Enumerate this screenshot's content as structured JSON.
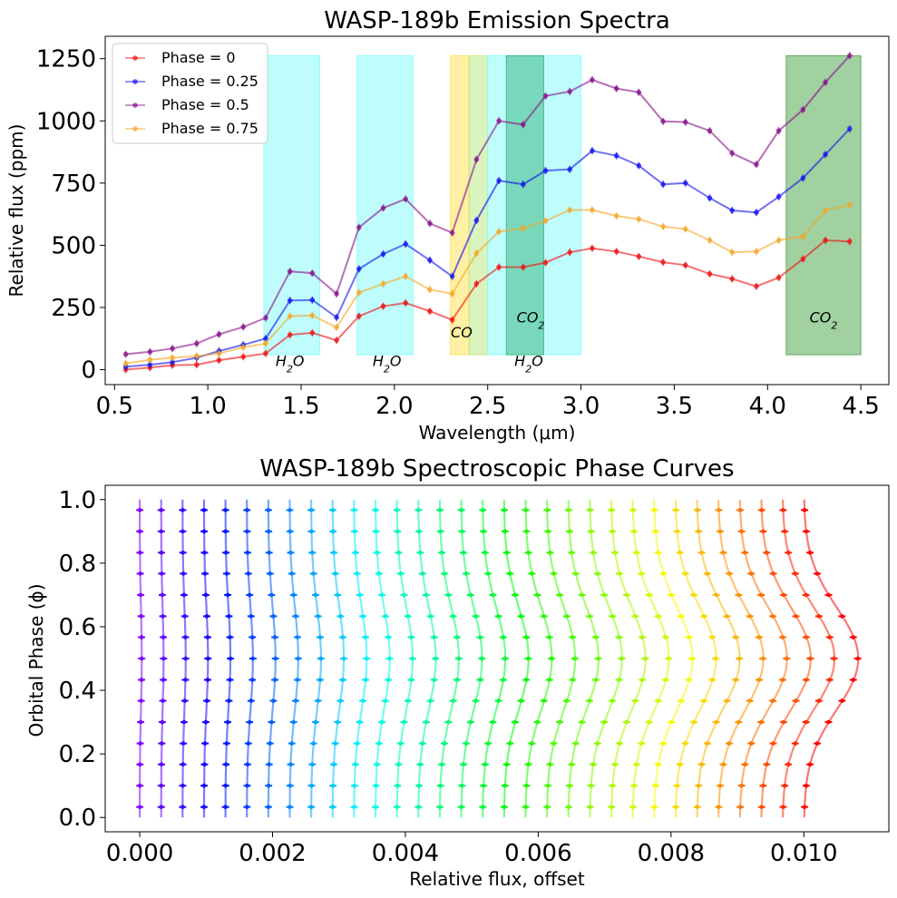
{
  "chart_data": [
    {
      "type": "line",
      "title": "WASP-189b Emission Spectra",
      "xlabel": "Wavelength (μm)",
      "ylabel": "Relative flux (ppm)",
      "xlim": [
        0.45,
        4.65
      ],
      "ylim": [
        -60,
        1340
      ],
      "xticks": [
        0.5,
        1.0,
        1.5,
        2.0,
        2.5,
        3.0,
        3.5,
        4.0,
        4.5
      ],
      "xtick_labels": [
        "0.5",
        "1.0",
        "1.5",
        "2.0",
        "2.5",
        "3.0",
        "3.5",
        "4.0",
        "4.5"
      ],
      "yticks": [
        0,
        250,
        500,
        750,
        1000,
        1250
      ],
      "ytick_labels": [
        "0",
        "250",
        "500",
        "750",
        "1000",
        "1250"
      ],
      "legend_position": "top-left",
      "x": [
        0.56,
        0.69,
        0.81,
        0.94,
        1.06,
        1.19,
        1.31,
        1.44,
        1.56,
        1.69,
        1.81,
        1.94,
        2.06,
        2.19,
        2.31,
        2.44,
        2.56,
        2.69,
        2.81,
        2.94,
        3.06,
        3.19,
        3.31,
        3.44,
        3.56,
        3.69,
        3.81,
        3.94,
        4.06,
        4.19,
        4.31,
        4.44
      ],
      "series": [
        {
          "name": "Phase = 0",
          "color": "#ee1111",
          "values": [
            0,
            8,
            18,
            20,
            38,
            52,
            65,
            140,
            148,
            118,
            215,
            255,
            268,
            235,
            200,
            345,
            412,
            412,
            430,
            472,
            488,
            475,
            455,
            432,
            420,
            385,
            365,
            335,
            370,
            445,
            520,
            515
          ]
        },
        {
          "name": "Phase = 0.25",
          "color": "#1111ee",
          "values": [
            12,
            20,
            30,
            48,
            75,
            100,
            125,
            278,
            280,
            210,
            405,
            465,
            505,
            440,
            375,
            600,
            760,
            745,
            800,
            805,
            880,
            860,
            820,
            745,
            750,
            690,
            640,
            632,
            695,
            770,
            865,
            968
          ]
        },
        {
          "name": "Phase = 0.5",
          "color": "#881188",
          "values": [
            62,
            72,
            85,
            105,
            142,
            172,
            208,
            395,
            388,
            305,
            572,
            650,
            686,
            588,
            550,
            845,
            1000,
            985,
            1100,
            1118,
            1165,
            1130,
            1115,
            998,
            995,
            960,
            870,
            825,
            960,
            1045,
            1155,
            1262
          ]
        },
        {
          "name": "Phase = 0.75",
          "color": "#f5a623",
          "values": [
            25,
            40,
            48,
            55,
            65,
            90,
            105,
            215,
            218,
            170,
            310,
            345,
            375,
            322,
            305,
            468,
            555,
            568,
            598,
            642,
            642,
            618,
            605,
            575,
            565,
            520,
            472,
            475,
            520,
            535,
            640,
            662
          ]
        }
      ],
      "bands": [
        {
          "species": "H2O",
          "x0": 1.3,
          "x1": 1.6,
          "color": "#7ffcfc",
          "label_x": 1.44,
          "label_y": 15
        },
        {
          "species": "H2O",
          "x0": 1.8,
          "x1": 2.1,
          "color": "#7ffcfc",
          "label_x": 1.96,
          "label_y": 15
        },
        {
          "species": "CO",
          "x0": 2.3,
          "x1": 2.4,
          "color": "#ffe14d",
          "label_x": 2.36,
          "label_y": 130
        },
        {
          "species": "CO",
          "x0": 2.4,
          "x1": 2.5,
          "color": "#b8e87a",
          "label_x": null,
          "label_y": null
        },
        {
          "species": "H2O",
          "x0": 2.5,
          "x1": 3.0,
          "color": "#7ffcfc",
          "label_x": 2.72,
          "label_y": 15
        },
        {
          "species": "CO2",
          "x0": 2.6,
          "x1": 2.8,
          "color": "#33b27a",
          "label_x": 2.73,
          "label_y": 190
        },
        {
          "species": "CO2",
          "x0": 4.1,
          "x1": 4.5,
          "color": "#44a144",
          "label_x": 4.3,
          "label_y": 190
        }
      ],
      "band_top": 1262,
      "band_bottom": 60
    },
    {
      "type": "line",
      "title": "WASP-189b Spectroscopic Phase Curves",
      "xlabel": "Relative flux, offset",
      "ylabel": "Orbital Phase (ϕ)",
      "xlim": [
        -0.00052,
        0.01128
      ],
      "ylim": [
        -0.045,
        1.045
      ],
      "xticks": [
        0.0,
        0.002,
        0.004,
        0.006,
        0.008,
        0.01
      ],
      "xtick_labels": [
        "0.000",
        "0.002",
        "0.004",
        "0.006",
        "0.008",
        "0.010"
      ],
      "yticks": [
        0.0,
        0.2,
        0.4,
        0.6,
        0.8,
        1.0
      ],
      "ytick_labels": [
        "0.0",
        "0.2",
        "0.4",
        "0.6",
        "0.8",
        "1.0"
      ],
      "curve_count": 32,
      "curve_offset_step": 0.00032258,
      "curve_amplitude_min": 3e-05,
      "curve_amplitude_max": 0.00082,
      "phase_samples": [
        0.033,
        0.1,
        0.167,
        0.233,
        0.3,
        0.367,
        0.433,
        0.5,
        0.567,
        0.633,
        0.7,
        0.767,
        0.833,
        0.9,
        0.967
      ],
      "colormap": "rainbow"
    }
  ],
  "legend_entries": [
    "Phase = 0",
    "Phase = 0.25",
    "Phase = 0.5",
    "Phase = 0.75"
  ]
}
